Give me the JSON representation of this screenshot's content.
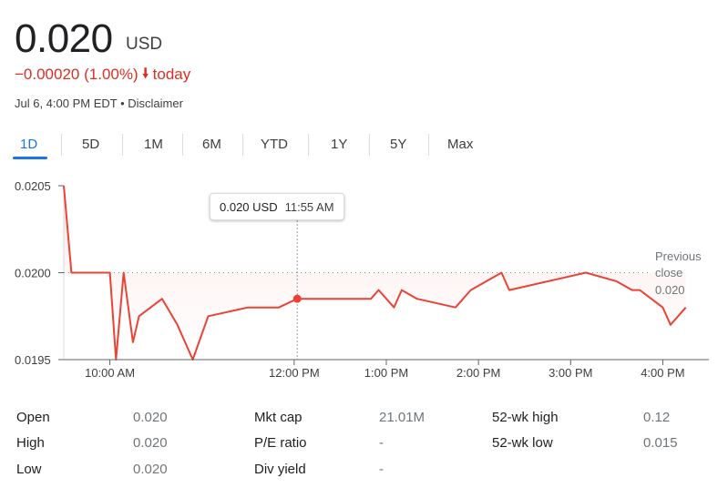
{
  "quote": {
    "price": "0.020",
    "currency": "USD",
    "change": "−0.00020 (1.00%)",
    "change_suffix": "today",
    "direction_icon": "arrow-down-icon",
    "meta": "Jul 6, 4:00 PM EDT • Disclaimer",
    "change_color": "#d93025"
  },
  "tabs": [
    {
      "label": "1D",
      "active": true
    },
    {
      "label": "5D"
    },
    {
      "label": "1M"
    },
    {
      "label": "6M"
    },
    {
      "label": "YTD"
    },
    {
      "label": "1Y"
    },
    {
      "label": "5Y"
    },
    {
      "label": "Max"
    }
  ],
  "tooltip": {
    "value": "0.020 USD",
    "time": "11:55 AM"
  },
  "chart_data": {
    "type": "line",
    "y_ticks": [
      "0.0205",
      "0.0200",
      "0.0195"
    ],
    "ylim": [
      0.0195,
      0.0205
    ],
    "x_ticks": [
      "10:00 AM",
      "12:00 PM",
      "1:00 PM",
      "2:00 PM",
      "3:00 PM",
      "4:00 PM"
    ],
    "x_tick_minutes": [
      600,
      720,
      780,
      840,
      900,
      960
    ],
    "xlim_minutes": [
      570,
      990
    ],
    "previous_close": {
      "label_1": "Previous",
      "label_2": "close",
      "value": "0.020",
      "y": 0.02
    },
    "line_color": "#ea4335",
    "series": [
      {
        "points": [
          [
            570,
            0.0205
          ],
          [
            575,
            0.02
          ],
          [
            600,
            0.02
          ],
          [
            604,
            0.0195
          ],
          [
            609,
            0.02
          ],
          [
            615,
            0.0196
          ],
          [
            619,
            0.01975
          ],
          [
            634,
            0.01985
          ],
          [
            644,
            0.0197
          ],
          [
            654,
            0.0195
          ],
          [
            664,
            0.01975
          ],
          [
            690,
            0.0198
          ],
          [
            710,
            0.0198
          ],
          [
            722,
            0.01985
          ],
          [
            770,
            0.01985
          ],
          [
            775,
            0.0199
          ],
          [
            785,
            0.0198
          ],
          [
            790,
            0.0199
          ],
          [
            800,
            0.01985
          ],
          [
            825,
            0.0198
          ],
          [
            835,
            0.0199
          ],
          [
            855,
            0.02
          ],
          [
            860,
            0.0199
          ],
          [
            910,
            0.02
          ],
          [
            930,
            0.01995
          ],
          [
            940,
            0.0199
          ],
          [
            945,
            0.0199
          ],
          [
            960,
            0.0198
          ],
          [
            965,
            0.0197
          ],
          [
            975,
            0.0198
          ]
        ]
      }
    ],
    "hover_point": [
      722,
      0.01985
    ]
  },
  "stats": [
    {
      "label": "Open",
      "value": "0.020"
    },
    {
      "label": "High",
      "value": "0.020"
    },
    {
      "label": "Low",
      "value": "0.020"
    },
    {
      "label": "Mkt cap",
      "value": "21.01M"
    },
    {
      "label": "P/E ratio",
      "value": "-"
    },
    {
      "label": "Div yield",
      "value": "-"
    },
    {
      "label": "52-wk high",
      "value": "0.12"
    },
    {
      "label": "52-wk low",
      "value": "0.015"
    }
  ]
}
